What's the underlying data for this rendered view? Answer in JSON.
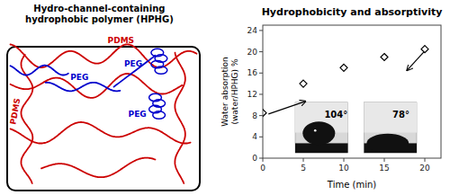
{
  "chart_data": {
    "type": "scatter",
    "title": "Hydrophobicity and absorptivity",
    "x": [
      0,
      5,
      10,
      15,
      20
    ],
    "values": [
      8.5,
      14.0,
      17.0,
      19.0,
      20.5
    ],
    "x_label": "Time (min)",
    "y_label": "Water absorption\n(water/HPHG) %",
    "xlim": [
      0,
      22
    ],
    "ylim": [
      0,
      25
    ],
    "xticks": [
      0,
      5,
      10,
      15,
      20
    ],
    "yticks": [
      0,
      4,
      8,
      12,
      16,
      20,
      24
    ],
    "color": "#000000",
    "marker": "diamond",
    "grid": false,
    "annotations": [
      "Hydro-channel-containing\nhydrophobic polymer (HPHG)",
      "PDMS",
      "PDMS",
      "PEG",
      "PEG",
      "PEG",
      "104°",
      "78°"
    ],
    "colors": [
      "#cc0000",
      "#0000cc"
    ]
  }
}
